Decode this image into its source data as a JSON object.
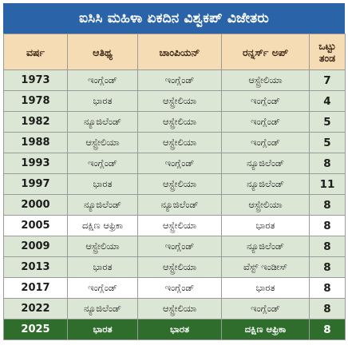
{
  "title": "ಐಸಿಸಿ ಮಹಿಳಾ ಏಕದಿನ ವಿಶ್ವಕಪ್ ವಿಜೇತರು",
  "headers": {
    "year": "ವರ್ಷ",
    "host": "ಆತಿಥ್ಯ",
    "champion": "ಚಾಂಪಿಯನ್",
    "runner_up": "ರನ್ನರ್ಸ್ ಅಪ್",
    "teams_line1": "ಒಟ್ಟು",
    "teams_line2": "ತಂಡ"
  },
  "rows": [
    {
      "year": "1973",
      "host": "ಇಂಗ್ಲೆಂಡ್",
      "champion": "ಇಂಗ್ಲೆಂಡ್",
      "runner_up": "ಆಸ್ಟ್ರೇಲಿಯಾ",
      "teams": "7",
      "style": "green"
    },
    {
      "year": "1978",
      "host": "ಭಾರತ",
      "champion": "ಆಸ್ಟ್ರೇಲಿಯಾ",
      "runner_up": "ಇಂಗ್ಲೆಂಡ್",
      "teams": "4",
      "style": "green"
    },
    {
      "year": "1982",
      "host": "ನ್ಯೂಜಿಲೆಂಡ್",
      "champion": "ಆಸ್ಟ್ರೇಲಿಯಾ",
      "runner_up": "ಇಂಗ್ಲೆಂಡ್",
      "teams": "5",
      "style": "green"
    },
    {
      "year": "1988",
      "host": "ಆಸ್ಟ್ರೇಲಿಯಾ",
      "champion": "ಆಸ್ಟ್ರೇಲಿಯಾ",
      "runner_up": "ಇಂಗ್ಲೆಂಡ್",
      "teams": "5",
      "style": "green"
    },
    {
      "year": "1993",
      "host": "ಇಂಗ್ಲೆಂಡ್",
      "champion": "ಇಂಗ್ಲೆಂಡ್",
      "runner_up": "ನ್ಯೂಜಿಲೆಂಡ್",
      "teams": "8",
      "style": "green"
    },
    {
      "year": "1997",
      "host": "ಭಾರತ",
      "champion": "ಆಸ್ಟ್ರೇಲಿಯಾ",
      "runner_up": "ನ್ಯೂಜಿಲೆಂಡ್",
      "teams": "11",
      "style": "green"
    },
    {
      "year": "2000",
      "host": "ನ್ಯೂಜಿಲೆಂಡ್",
      "champion": "ನ್ಯೂಜಿಲೆಂಡ್",
      "runner_up": "ಆಸ್ಟ್ರೇಲಿಯಾ",
      "teams": "8",
      "style": "green"
    },
    {
      "year": "2005",
      "host": "ದಕ್ಷಿಣ ಆಫ್ರಿಕಾ",
      "champion": "ಆಸ್ಟ್ರೇಲಿಯಾ",
      "runner_up": "ಭಾರತ",
      "teams": "8",
      "style": "white"
    },
    {
      "year": "2009",
      "host": "ಆಸ್ಟ್ರೇಲಿಯಾ",
      "champion": "ಇಂಗ್ಲೆಂಡ್",
      "runner_up": "ನ್ಯೂಜಿಲೆಂಡ್",
      "teams": "8",
      "style": "green"
    },
    {
      "year": "2013",
      "host": "ಭಾರತ",
      "champion": "ಆಸ್ಟ್ರೇಲಿಯಾ",
      "runner_up": "ವೆಸ್ಟ್ ಇಂಡೀಸ್",
      "teams": "8",
      "style": "green"
    },
    {
      "year": "2017",
      "host": "ಇಂಗ್ಲೆಂಡ್",
      "champion": "ಇಂಗ್ಲೆಂಡ್",
      "runner_up": "ಭಾರತ",
      "teams": "8",
      "style": "white"
    },
    {
      "year": "2022",
      "host": "ನ್ಯೂಜಿಲೆಂಡ್",
      "champion": "ಆಸ್ಟ್ರೇಲಿಯಾ",
      "runner_up": "ಇಂಗ್ಲೆಂಡ್",
      "teams": "8",
      "style": "green"
    },
    {
      "year": "2025",
      "host": "ಭಾರತ",
      "champion": "ಭಾರತ",
      "runner_up": "ದಕ್ಷಿಣ ಆಫ್ರಿಕಾ",
      "teams": "8",
      "style": "final"
    }
  ],
  "colors": {
    "title_bg": "#2a63a8",
    "header_bg": "#f6dcb5",
    "row_green": "#dce6d4",
    "row_white": "#ffffff",
    "row_final": "#2f6d2c"
  }
}
